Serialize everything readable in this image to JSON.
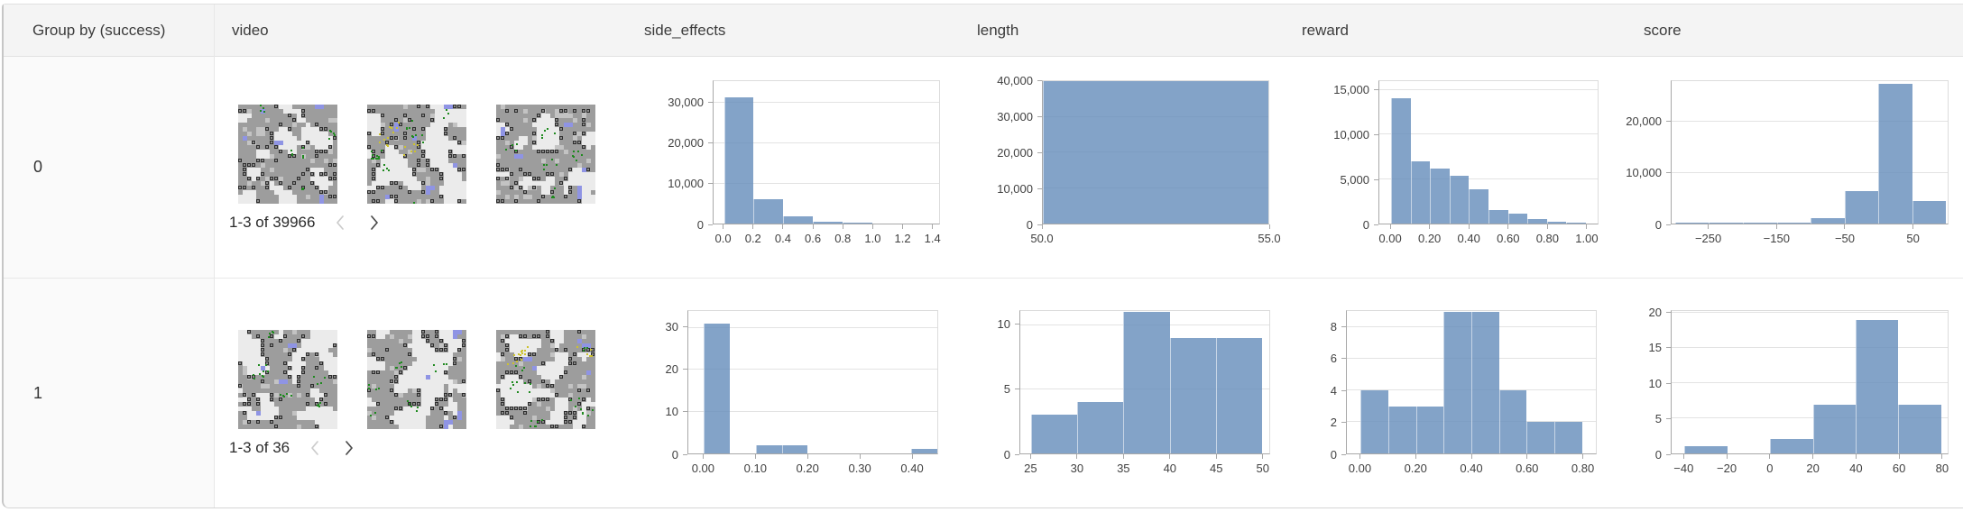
{
  "header": {
    "columns": [
      "Group by (success)",
      "video",
      "side_effects",
      "length",
      "reward",
      "score"
    ]
  },
  "theme": {
    "bar_color": "#648cbacc",
    "header_bg": "#f4f4f4",
    "group_col_bg": "#fafafa",
    "border_color": "#e2e2e2",
    "axis_color": "#a8a8a8",
    "grid_color": "#e3e3e3"
  },
  "rows": [
    {
      "group_value": "0",
      "pagination": "1-3 of 39966",
      "video": {
        "thumbnail_count": 3,
        "prev_icon": "chevron-left",
        "next_icon": "chevron-right"
      }
    },
    {
      "group_value": "1",
      "pagination": "1-3 of 36",
      "video": {
        "thumbnail_count": 3,
        "prev_icon": "chevron-left",
        "next_icon": "chevron-right"
      }
    }
  ],
  "chart_data": [
    {
      "group": "0",
      "metric": "side_effects",
      "type": "bar",
      "x_range": [
        -0.07,
        1.45
      ],
      "y_max": 35500,
      "y_ticks": [
        {
          "value": 0,
          "label": "0"
        },
        {
          "value": 10000,
          "label": "10,000"
        },
        {
          "value": 20000,
          "label": "20,000"
        },
        {
          "value": 30000,
          "label": "30,000"
        }
      ],
      "x_ticks": [
        {
          "value": 0.0,
          "label": "0.0"
        },
        {
          "value": 0.2,
          "label": "0.2"
        },
        {
          "value": 0.4,
          "label": "0.4"
        },
        {
          "value": 0.6,
          "label": "0.6"
        },
        {
          "value": 0.8,
          "label": "0.8"
        },
        {
          "value": 1.0,
          "label": "1.0"
        },
        {
          "value": 1.2,
          "label": "1.2"
        },
        {
          "value": 1.4,
          "label": "1.4"
        }
      ],
      "bins": [
        {
          "x0": 0.0,
          "x1": 0.2,
          "count": 31500
        },
        {
          "x0": 0.2,
          "x1": 0.4,
          "count": 6000
        },
        {
          "x0": 0.4,
          "x1": 0.6,
          "count": 1800
        },
        {
          "x0": 0.6,
          "x1": 0.8,
          "count": 450
        },
        {
          "x0": 0.8,
          "x1": 1.0,
          "count": 130
        },
        {
          "x0": 1.0,
          "x1": 1.2,
          "count": 90
        },
        {
          "x0": 1.2,
          "x1": 1.4,
          "count": 70
        }
      ]
    },
    {
      "group": "0",
      "metric": "length",
      "type": "bar",
      "x_range": [
        50,
        55
      ],
      "y_max": 40000,
      "y_ticks": [
        {
          "value": 0,
          "label": "0"
        },
        {
          "value": 10000,
          "label": "10,000"
        },
        {
          "value": 20000,
          "label": "20,000"
        },
        {
          "value": 30000,
          "label": "30,000"
        },
        {
          "value": 40000,
          "label": "40,000"
        }
      ],
      "x_ticks": [
        {
          "value": 50,
          "label": "50.0"
        },
        {
          "value": 55,
          "label": "55.0"
        }
      ],
      "bins": [
        {
          "x0": 50,
          "x1": 55,
          "count": 39966
        }
      ]
    },
    {
      "group": "0",
      "metric": "reward",
      "type": "bar",
      "x_range": [
        -0.06,
        1.06
      ],
      "y_max": 16000,
      "y_ticks": [
        {
          "value": 0,
          "label": "0"
        },
        {
          "value": 5000,
          "label": "5,000"
        },
        {
          "value": 10000,
          "label": "10,000"
        },
        {
          "value": 15000,
          "label": "15,000"
        }
      ],
      "x_ticks": [
        {
          "value": 0.0,
          "label": "0.00"
        },
        {
          "value": 0.2,
          "label": "0.20"
        },
        {
          "value": 0.4,
          "label": "0.40"
        },
        {
          "value": 0.6,
          "label": "0.60"
        },
        {
          "value": 0.8,
          "label": "0.80"
        },
        {
          "value": 1.0,
          "label": "1.00"
        }
      ],
      "bins": [
        {
          "x0": 0.0,
          "x1": 0.1,
          "count": 14100
        },
        {
          "x0": 0.1,
          "x1": 0.2,
          "count": 7000
        },
        {
          "x0": 0.2,
          "x1": 0.3,
          "count": 6200
        },
        {
          "x0": 0.3,
          "x1": 0.4,
          "count": 5400
        },
        {
          "x0": 0.4,
          "x1": 0.5,
          "count": 3800
        },
        {
          "x0": 0.5,
          "x1": 0.6,
          "count": 1500
        },
        {
          "x0": 0.6,
          "x1": 0.7,
          "count": 1100
        },
        {
          "x0": 0.7,
          "x1": 0.8,
          "count": 500
        },
        {
          "x0": 0.8,
          "x1": 0.9,
          "count": 220
        },
        {
          "x0": 0.9,
          "x1": 1.0,
          "count": 130
        }
      ]
    },
    {
      "group": "0",
      "metric": "score",
      "type": "bar",
      "x_range": [
        -305,
        102
      ],
      "y_max": 28000,
      "y_ticks": [
        {
          "value": 0,
          "label": "0"
        },
        {
          "value": 10000,
          "label": "10,000"
        },
        {
          "value": 20000,
          "label": "20,000"
        }
      ],
      "x_ticks": [
        {
          "value": -250,
          "label": "−250"
        },
        {
          "value": -150,
          "label": "−150"
        },
        {
          "value": -50,
          "label": "−50"
        },
        {
          "value": 50,
          "label": "50"
        }
      ],
      "bins": [
        {
          "x0": -300,
          "x1": -250,
          "count": 100
        },
        {
          "x0": -250,
          "x1": -200,
          "count": 110
        },
        {
          "x0": -200,
          "x1": -150,
          "count": 130
        },
        {
          "x0": -150,
          "x1": -100,
          "count": 220
        },
        {
          "x0": -100,
          "x1": -50,
          "count": 1100
        },
        {
          "x0": -50,
          "x1": 0,
          "count": 6300
        },
        {
          "x0": 0,
          "x1": 50,
          "count": 27500
        },
        {
          "x0": 50,
          "x1": 100,
          "count": 4400
        }
      ]
    },
    {
      "group": "1",
      "metric": "side_effects",
      "type": "bar",
      "x_range": [
        -0.03,
        0.45
      ],
      "y_max": 34,
      "y_ticks": [
        {
          "value": 0,
          "label": "0"
        },
        {
          "value": 10,
          "label": "10"
        },
        {
          "value": 20,
          "label": "20"
        },
        {
          "value": 30,
          "label": "30"
        }
      ],
      "x_ticks": [
        {
          "value": 0.0,
          "label": "0.00"
        },
        {
          "value": 0.1,
          "label": "0.10"
        },
        {
          "value": 0.2,
          "label": "0.20"
        },
        {
          "value": 0.3,
          "label": "0.30"
        },
        {
          "value": 0.4,
          "label": "0.40"
        }
      ],
      "bins": [
        {
          "x0": 0.0,
          "x1": 0.05,
          "count": 31
        },
        {
          "x0": 0.1,
          "x1": 0.15,
          "count": 2
        },
        {
          "x0": 0.15,
          "x1": 0.2,
          "count": 2
        },
        {
          "x0": 0.4,
          "x1": 0.45,
          "count": 1
        }
      ]
    },
    {
      "group": "1",
      "metric": "length",
      "type": "bar",
      "x_range": [
        23.8,
        50.8
      ],
      "y_max": 11.1,
      "y_ticks": [
        {
          "value": 0,
          "label": "0"
        },
        {
          "value": 5,
          "label": "5"
        },
        {
          "value": 10,
          "label": "10"
        }
      ],
      "x_ticks": [
        {
          "value": 25,
          "label": "25"
        },
        {
          "value": 30,
          "label": "30"
        },
        {
          "value": 35,
          "label": "35"
        },
        {
          "value": 40,
          "label": "40"
        },
        {
          "value": 45,
          "label": "45"
        },
        {
          "value": 50,
          "label": "50"
        }
      ],
      "bins": [
        {
          "x0": 25,
          "x1": 30,
          "count": 3
        },
        {
          "x0": 30,
          "x1": 35,
          "count": 4
        },
        {
          "x0": 35,
          "x1": 40,
          "count": 11
        },
        {
          "x0": 40,
          "x1": 45,
          "count": 9
        },
        {
          "x0": 45,
          "x1": 50,
          "count": 9
        }
      ]
    },
    {
      "group": "1",
      "metric": "reward",
      "type": "bar",
      "x_range": [
        -0.05,
        0.85
      ],
      "y_max": 9.05,
      "y_ticks": [
        {
          "value": 0,
          "label": "0"
        },
        {
          "value": 2,
          "label": "2"
        },
        {
          "value": 4,
          "label": "4"
        },
        {
          "value": 6,
          "label": "6"
        },
        {
          "value": 8,
          "label": "8"
        }
      ],
      "x_ticks": [
        {
          "value": 0.0,
          "label": "0.00"
        },
        {
          "value": 0.2,
          "label": "0.20"
        },
        {
          "value": 0.4,
          "label": "0.40"
        },
        {
          "value": 0.6,
          "label": "0.60"
        },
        {
          "value": 0.8,
          "label": "0.80"
        }
      ],
      "bins": [
        {
          "x0": 0.0,
          "x1": 0.1,
          "count": 4
        },
        {
          "x0": 0.1,
          "x1": 0.2,
          "count": 3
        },
        {
          "x0": 0.2,
          "x1": 0.3,
          "count": 3
        },
        {
          "x0": 0.3,
          "x1": 0.4,
          "count": 9
        },
        {
          "x0": 0.4,
          "x1": 0.5,
          "count": 9
        },
        {
          "x0": 0.5,
          "x1": 0.6,
          "count": 4
        },
        {
          "x0": 0.6,
          "x1": 0.7,
          "count": 2
        },
        {
          "x0": 0.7,
          "x1": 0.8,
          "count": 2
        }
      ]
    },
    {
      "group": "1",
      "metric": "score",
      "type": "bar",
      "x_range": [
        -46,
        83
      ],
      "y_max": 20.3,
      "y_ticks": [
        {
          "value": 0,
          "label": "0"
        },
        {
          "value": 5,
          "label": "5"
        },
        {
          "value": 10,
          "label": "10"
        },
        {
          "value": 15,
          "label": "15"
        },
        {
          "value": 20,
          "label": "20"
        }
      ],
      "x_ticks": [
        {
          "value": -40,
          "label": "−40"
        },
        {
          "value": -20,
          "label": "−20"
        },
        {
          "value": 0,
          "label": "0"
        },
        {
          "value": 20,
          "label": "20"
        },
        {
          "value": 40,
          "label": "40"
        },
        {
          "value": 60,
          "label": "60"
        },
        {
          "value": 80,
          "label": "80"
        }
      ],
      "bins": [
        {
          "x0": -40,
          "x1": -20,
          "count": 1
        },
        {
          "x0": 0,
          "x1": 20,
          "count": 2
        },
        {
          "x0": 20,
          "x1": 40,
          "count": 7
        },
        {
          "x0": 40,
          "x1": 60,
          "count": 19
        },
        {
          "x0": 60,
          "x1": 80,
          "count": 7
        }
      ]
    }
  ]
}
